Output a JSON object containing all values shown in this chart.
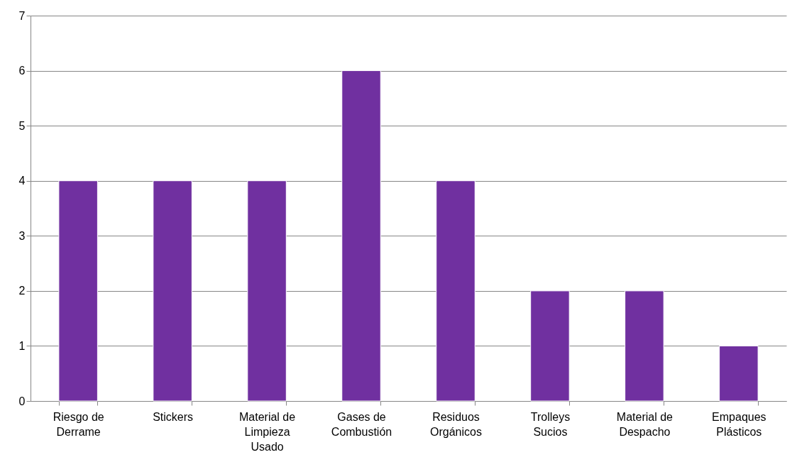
{
  "chart_data": {
    "type": "bar",
    "categories": [
      "Riesgo de Derrame",
      "Stickers",
      "Material de Limpieza Usado",
      "Gases de Combustión",
      "Residuos Orgánicos",
      "Trolleys Sucios",
      "Material de Despacho",
      "Empaques Plásticos"
    ],
    "values": [
      4,
      4,
      4,
      6,
      4,
      2,
      2,
      1
    ],
    "color": "#7030a0",
    "ylim": [
      0,
      7
    ],
    "yticks": [
      0,
      1,
      2,
      3,
      4,
      5,
      6,
      7
    ],
    "grid": "y"
  }
}
